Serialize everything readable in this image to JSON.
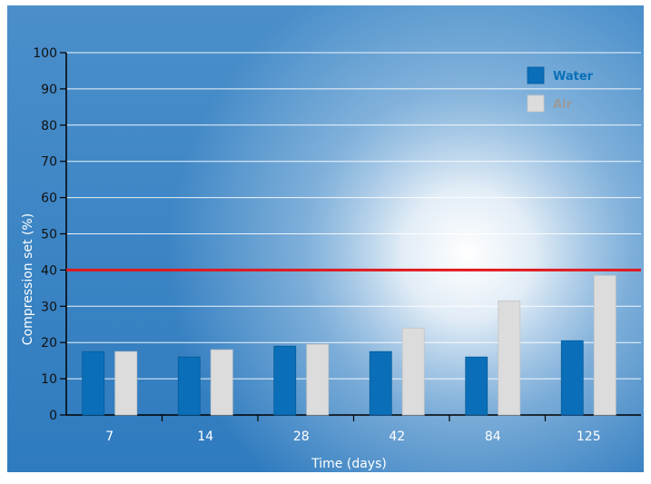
{
  "chart_data": {
    "type": "bar",
    "title": "",
    "xlabel": "Time (days)",
    "ylabel": "Compression set (%)",
    "categories": [
      "7",
      "14",
      "28",
      "42",
      "84",
      "125"
    ],
    "series": [
      {
        "name": "Water",
        "color": "#0a6fb8",
        "values": [
          17.5,
          16,
          19,
          17.5,
          16,
          20.5
        ]
      },
      {
        "name": "Air",
        "color": "#dcdcdc",
        "values": [
          17.5,
          18,
          19.5,
          24,
          31.5,
          38.5
        ]
      }
    ],
    "ylim": [
      0,
      100
    ],
    "yticks": [
      0,
      10,
      20,
      30,
      40,
      50,
      60,
      70,
      80,
      90,
      100
    ],
    "grid": true,
    "legend_position": "top-right",
    "reference_line": {
      "value": 40,
      "color": "#e0191e"
    }
  }
}
